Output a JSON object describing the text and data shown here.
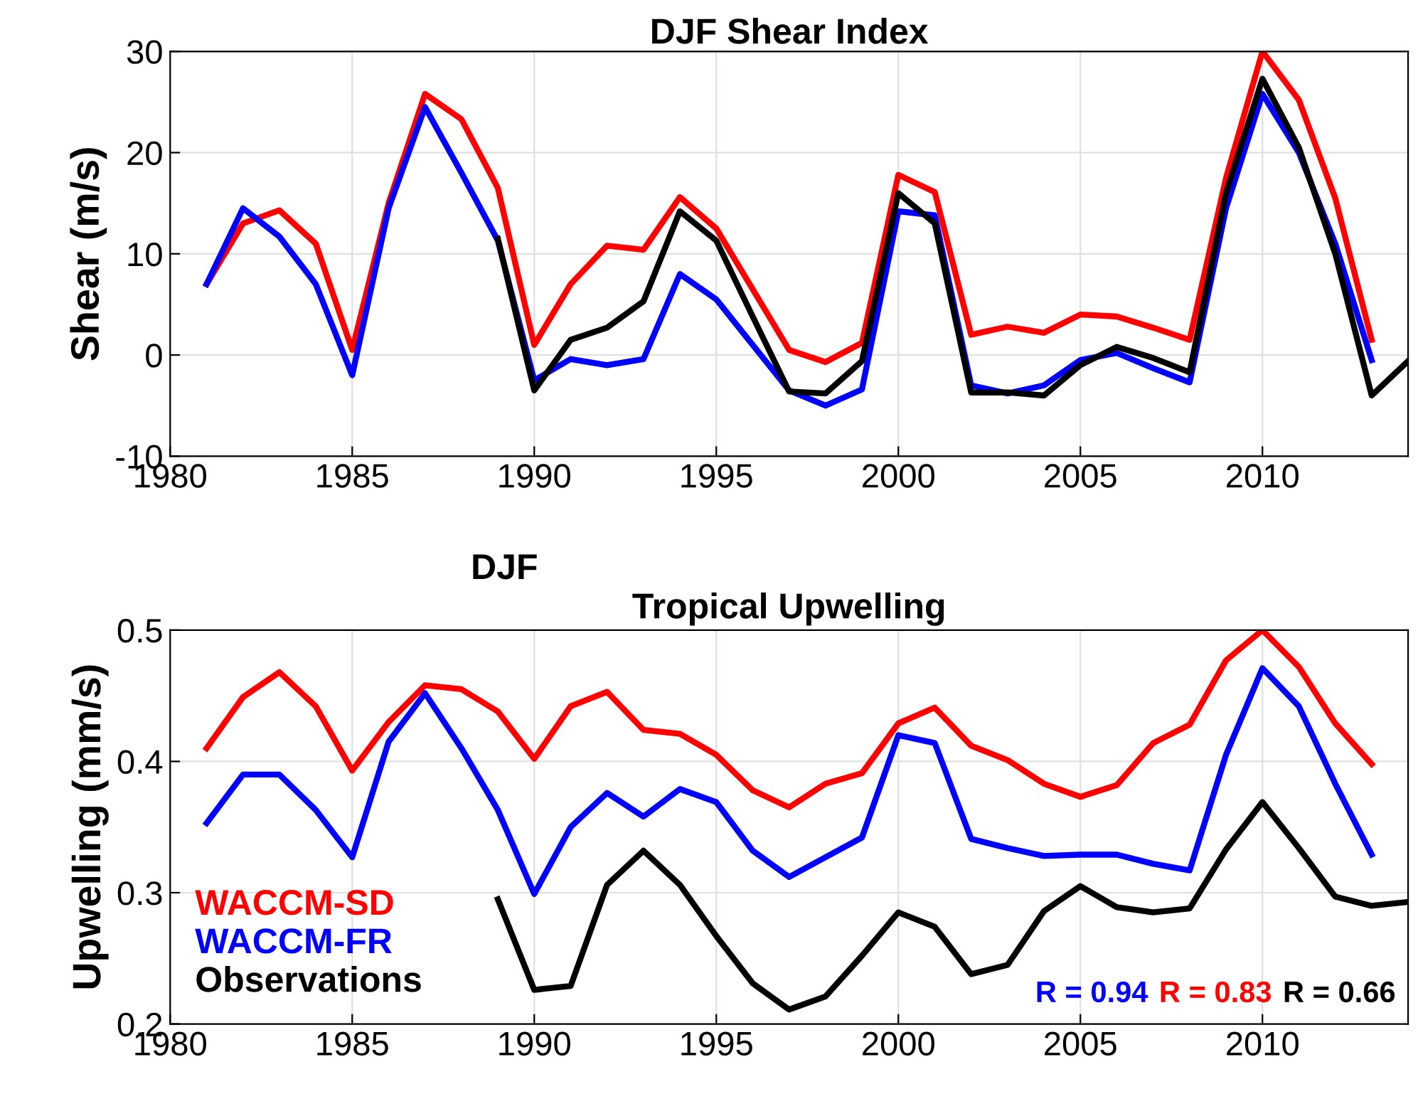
{
  "chart_data": [
    {
      "type": "line",
      "title": "DJF Shear Index",
      "ylabel": "Shear (m/s)",
      "xlim": [
        1980,
        2014
      ],
      "xticks": [
        1980,
        1985,
        1990,
        1995,
        2000,
        2005,
        2010
      ],
      "ylim": [
        -10,
        30
      ],
      "yticks": [
        -10,
        0,
        10,
        20,
        30
      ],
      "grid": true,
      "legend": false,
      "series": [
        {
          "color": "#ff0000",
          "x": [
            1981,
            1982,
            1983,
            1984,
            1985,
            1986,
            1987,
            1988,
            1989,
            1990,
            1991,
            1992,
            1993,
            1994,
            1995,
            1996,
            1997,
            1998,
            1999,
            2000,
            2001,
            2002,
            2003,
            2004,
            2005,
            2006,
            2007,
            2008,
            2009,
            2010,
            2011,
            2012,
            2013
          ],
          "values": [
            7,
            13,
            14.3,
            11,
            0.5,
            15,
            25.8,
            23.3,
            16.5,
            1,
            7,
            10.8,
            10.4,
            15.6,
            12.5,
            6.5,
            0.5,
            -0.7,
            1.2,
            17.8,
            16.1,
            2,
            2.8,
            2.2,
            4,
            3.8,
            2.7,
            1.5,
            17.5,
            30,
            25.2,
            15.5,
            1.5
          ]
        },
        {
          "color": "#0000ff",
          "x": [
            1981,
            1982,
            1983,
            1984,
            1985,
            1986,
            1987,
            1988,
            1989,
            1990,
            1991,
            1992,
            1993,
            1994,
            1995,
            1996,
            1997,
            1998,
            1999,
            2000,
            2001,
            2002,
            2003,
            2004,
            2005,
            2006,
            2007,
            2008,
            2009,
            2010,
            2011,
            2012,
            2013
          ],
          "values": [
            7,
            14.5,
            11.7,
            7,
            -2,
            14.5,
            24.5,
            18,
            11.3,
            -2.5,
            -0.4,
            -1,
            -0.4,
            8,
            5.5,
            1,
            -3.5,
            -5,
            -3.4,
            14.2,
            13.8,
            -3,
            -3.8,
            -3,
            -0.5,
            0.2,
            -1.3,
            -2.7,
            14.5,
            25.8,
            20,
            11,
            -0.5
          ]
        },
        {
          "color": "#000000",
          "x": [
            1989,
            1990,
            1991,
            1992,
            1993,
            1994,
            1995,
            1996,
            1997,
            1998,
            1999,
            2000,
            2001,
            2002,
            2003,
            2004,
            2005,
            2006,
            2007,
            2008,
            2009,
            2010,
            2011,
            2012,
            2013,
            2014
          ],
          "values": [
            11.5,
            -3.5,
            1.5,
            2.7,
            5.3,
            14.2,
            11.3,
            3.8,
            -3.6,
            -3.8,
            -0.6,
            16,
            13,
            -3.7,
            -3.7,
            -4,
            -1,
            0.8,
            -0.3,
            -1.7,
            16,
            27.3,
            20.5,
            10,
            -4,
            -0.6
          ]
        }
      ]
    },
    {
      "type": "line",
      "title": "DJF",
      "subtitle": "Tropical Upwelling",
      "ylabel": "Upwelling (mm/s)",
      "xlim": [
        1980,
        2014
      ],
      "xticks": [
        1980,
        1985,
        1990,
        1995,
        2000,
        2005,
        2010
      ],
      "ylim": [
        0.2,
        0.5
      ],
      "yticks": [
        0.2,
        0.3,
        0.4,
        0.5
      ],
      "grid": true,
      "legend": "bottom left",
      "annotations": [
        "R = 0.94",
        "R = 0.83",
        "R = 0.66"
      ],
      "series": [
        {
          "name": "WACCM-SD",
          "color": "#ff0000",
          "x": [
            1981,
            1982,
            1983,
            1984,
            1985,
            1986,
            1987,
            1988,
            1989,
            1990,
            1991,
            1992,
            1993,
            1994,
            1995,
            1996,
            1997,
            1998,
            1999,
            2000,
            2001,
            2002,
            2003,
            2004,
            2005,
            2006,
            2007,
            2008,
            2009,
            2010,
            2011,
            2012,
            2013
          ],
          "values": [
            0.41,
            0.449,
            0.468,
            0.442,
            0.393,
            0.43,
            0.458,
            0.455,
            0.438,
            0.402,
            0.442,
            0.453,
            0.424,
            0.421,
            0.405,
            0.378,
            0.365,
            0.383,
            0.391,
            0.429,
            0.441,
            0.412,
            0.401,
            0.383,
            0.373,
            0.382,
            0.414,
            0.428,
            0.477,
            0.5,
            0.472,
            0.429,
            0.398
          ]
        },
        {
          "name": "WACCM-FR",
          "color": "#0000ff",
          "x": [
            1981,
            1982,
            1983,
            1984,
            1985,
            1986,
            1987,
            1988,
            1989,
            1990,
            1991,
            1992,
            1993,
            1994,
            1995,
            1996,
            1997,
            1998,
            1999,
            2000,
            2001,
            2002,
            2003,
            2004,
            2005,
            2006,
            2007,
            2008,
            2009,
            2010,
            2011,
            2012,
            2013
          ],
          "values": [
            0.353,
            0.39,
            0.39,
            0.363,
            0.327,
            0.415,
            0.452,
            0.41,
            0.363,
            0.299,
            0.35,
            0.376,
            0.358,
            0.379,
            0.369,
            0.332,
            0.312,
            0.327,
            0.342,
            0.42,
            0.414,
            0.341,
            0.334,
            0.328,
            0.329,
            0.329,
            0.322,
            0.317,
            0.405,
            0.471,
            0.442,
            0.383,
            0.329
          ]
        },
        {
          "name": "Observations",
          "color": "#000000",
          "x": [
            1989,
            1990,
            1991,
            1992,
            1993,
            1994,
            1995,
            1996,
            1997,
            1998,
            1999,
            2000,
            2001,
            2002,
            2003,
            2004,
            2005,
            2006,
            2007,
            2008,
            2009,
            2010,
            2011,
            2012,
            2013,
            2014
          ],
          "values": [
            0.295,
            0.226,
            0.229,
            0.306,
            0.332,
            0.306,
            0.267,
            0.231,
            0.211,
            0.221,
            0.252,
            0.285,
            0.274,
            0.238,
            0.245,
            0.286,
            0.305,
            0.289,
            0.285,
            0.288,
            0.333,
            0.369,
            0.334,
            0.297,
            0.29,
            0.293
          ]
        }
      ]
    }
  ]
}
